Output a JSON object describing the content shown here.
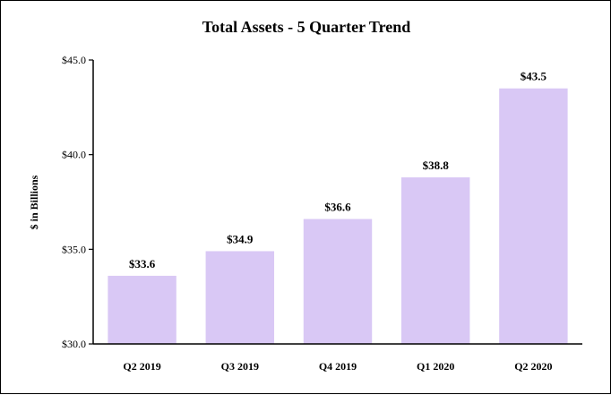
{
  "chart_data": {
    "type": "bar",
    "title": "Total Assets - 5 Quarter Trend",
    "xlabel": "",
    "ylabel": "$ in Billions",
    "categories": [
      "Q2 2019",
      "Q3 2019",
      "Q4 2019",
      "Q1 2020",
      "Q2 2020"
    ],
    "values": [
      33.6,
      34.9,
      36.6,
      38.8,
      43.5
    ],
    "data_labels": [
      "$33.6",
      "$34.9",
      "$36.6",
      "$38.8",
      "$43.5"
    ],
    "ylim": [
      30,
      45
    ],
    "yticks": [
      30,
      35,
      40,
      45
    ],
    "ytick_labels": [
      "$30.0",
      "$35.0",
      "$40.0",
      "$45.0"
    ],
    "grid": false,
    "legend": "none",
    "bar_color": "#d9c8f5"
  }
}
